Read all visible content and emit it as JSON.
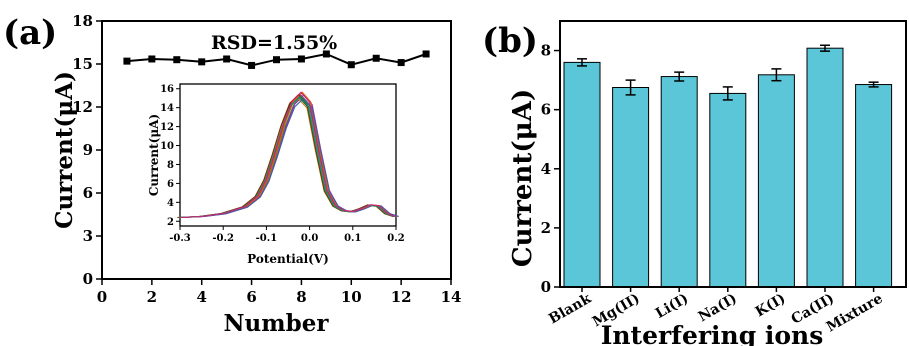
{
  "panel_a": {
    "label": "(a)",
    "annotation": "RSD=1.55%"
  },
  "panel_b": {
    "label": "(b)"
  },
  "inset": {
    "note": "inset of panel (a)"
  },
  "chart_data": [
    {
      "id": "a",
      "type": "line",
      "title": "",
      "xlabel": "Number",
      "ylabel": "Current(μA)",
      "xlim": [
        0,
        14
      ],
      "ylim": [
        0,
        18
      ],
      "xticks": [
        0,
        2,
        4,
        6,
        8,
        10,
        12,
        14
      ],
      "yticks": [
        0,
        3,
        6,
        9,
        12,
        15,
        18
      ],
      "x": [
        1,
        2,
        3,
        4,
        5,
        6,
        7,
        8,
        9,
        10,
        11,
        12,
        13
      ],
      "series": [
        {
          "values": [
            15.2,
            15.35,
            15.3,
            15.15,
            15.35,
            14.9,
            15.3,
            15.35,
            15.7,
            14.95,
            15.4,
            15.1,
            15.7
          ]
        }
      ],
      "color": "#000000",
      "marker": "square"
    },
    {
      "id": "a-inset",
      "type": "line",
      "title": "",
      "xlabel": "Potential(V)",
      "ylabel": "Current(μA)",
      "xlim": [
        -0.3,
        0.2
      ],
      "ylim": [
        1.5,
        16.5
      ],
      "xticks": [
        -0.3,
        -0.2,
        -0.1,
        0.0,
        0.1,
        0.2
      ],
      "yticks": [
        2,
        4,
        6,
        8,
        10,
        12,
        14,
        16
      ],
      "x": [
        -0.3,
        -0.25,
        -0.2,
        -0.15,
        -0.12,
        -0.1,
        -0.08,
        -0.06,
        -0.04,
        -0.02,
        0.0,
        0.02,
        0.04,
        0.06,
        0.08,
        0.1,
        0.12,
        0.14,
        0.16,
        0.18,
        0.2
      ],
      "curve_shape": [
        2.4,
        2.5,
        2.8,
        3.5,
        4.6,
        6.3,
        9.0,
        12.0,
        14.3,
        15.2,
        14.2,
        9.5,
        5.2,
        3.6,
        3.1,
        3.0,
        3.3,
        3.7,
        3.6,
        2.8,
        2.5
      ],
      "peak_currents": [
        15.2,
        15.35,
        15.3,
        15.15,
        15.35,
        14.9,
        15.3,
        15.35,
        15.7,
        14.95,
        15.4,
        15.1,
        15.7
      ],
      "colors": [
        "#000000",
        "#e02020",
        "#2040e0",
        "#20a020",
        "#a020c0",
        "#c08020",
        "#20a0a0",
        "#606060",
        "#e06000",
        "#4060a0",
        "#803000",
        "#00a060",
        "#d02080"
      ]
    },
    {
      "id": "b",
      "type": "bar",
      "title": "",
      "xlabel": "Interfering ions",
      "ylabel": "Current(μA)",
      "ylim": [
        0,
        9
      ],
      "yticks": [
        0,
        2,
        4,
        6,
        8
      ],
      "categories": [
        "Blank",
        "Mg(II)",
        "Li(I)",
        "Na(I)",
        "K(I)",
        "Ca(II)",
        "Mixture"
      ],
      "values": [
        7.6,
        6.75,
        7.12,
        6.55,
        7.18,
        8.08,
        6.85
      ],
      "errors": [
        0.12,
        0.25,
        0.15,
        0.22,
        0.2,
        0.1,
        0.08
      ],
      "bar_color": "#5bc6d8"
    }
  ]
}
